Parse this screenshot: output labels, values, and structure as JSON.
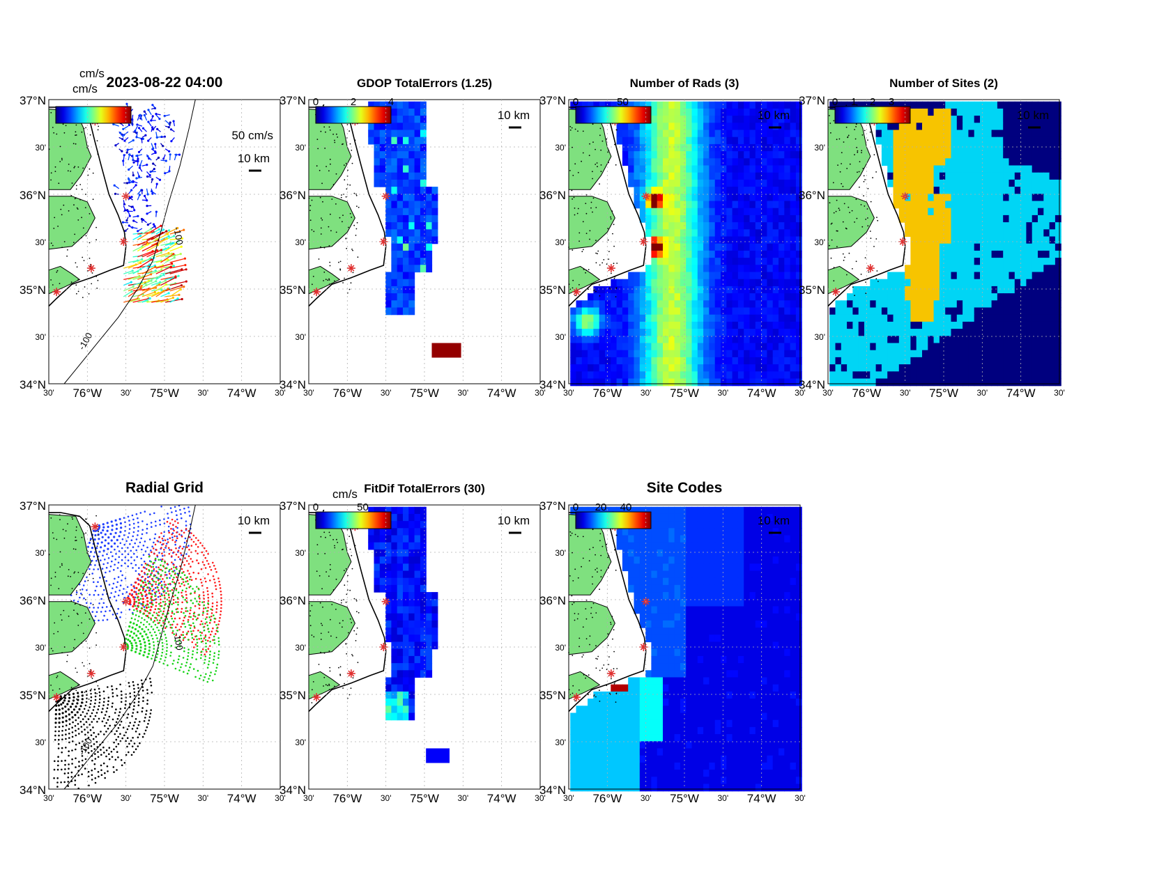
{
  "figure": {
    "panels": [
      {
        "id": "currents",
        "title": "2023-08-22 04:00",
        "unit_label": "cm/s",
        "vector_scale_label": "50 cm/s",
        "scale_bar_label": "10 km",
        "colorbar_ticks": [],
        "colormap": "jet",
        "isobath_label": "-100",
        "isobath_label2": "-100"
      },
      {
        "id": "gdop",
        "title": "GDOP TotalErrors (1.25)",
        "unit_label": "",
        "scale_bar_label": "10 km",
        "colorbar_ticks": [
          "0",
          "2",
          "4"
        ],
        "colormap": "jet",
        "contour_label": "1.25"
      },
      {
        "id": "nrads",
        "title": "Number of Rads (3)",
        "unit_label": "",
        "scale_bar_label": "10 km",
        "colorbar_ticks": [
          "0",
          "50"
        ],
        "colormap": "jet",
        "contour_label": "3"
      },
      {
        "id": "nsites",
        "title": "Number of Sites (2)",
        "unit_label": "",
        "scale_bar_label": "10 km",
        "colorbar_ticks": [
          "0",
          "1",
          "2",
          "3"
        ],
        "colormap": "jet",
        "contour_label": "2"
      },
      {
        "id": "radialgrid",
        "title": "Radial Grid",
        "unit_label": "",
        "scale_bar_label": "10 km",
        "colorbar_ticks": [],
        "isobath_label": "-100",
        "isobath_label2": "-100"
      },
      {
        "id": "fitdif",
        "title": "FitDif TotalErrors (30)",
        "unit_label": "cm/s",
        "scale_bar_label": "10 km",
        "colorbar_ticks": [
          "0",
          "50"
        ],
        "colormap": "jet",
        "contour_label": "30"
      },
      {
        "id": "sitecodes",
        "title": "Site Codes",
        "unit_label": "",
        "scale_bar_label": "10 km",
        "colorbar_ticks": [
          "0",
          "20",
          "40"
        ],
        "colormap": "jet"
      }
    ],
    "lat_ticks": [
      "37°N",
      "30'",
      "36°N",
      "30'",
      "35°N",
      "30'",
      "34°N"
    ],
    "lon_ticks": [
      "30'",
      "76°W",
      "30'",
      "75°W",
      "30'",
      "74°W",
      "30'"
    ],
    "colors": {
      "land": "#7fe07f",
      "site_marker": "#e03030",
      "grid_site1": "#1f3fff",
      "grid_site2": "#ff1a1a",
      "grid_site3": "#18d418",
      "grid_site4": "#000000",
      "nsites_1": "#00d5f5",
      "nsites_2": "#f7c400",
      "nsites_3": "#8b0000",
      "background_low": "#00007f"
    }
  }
}
